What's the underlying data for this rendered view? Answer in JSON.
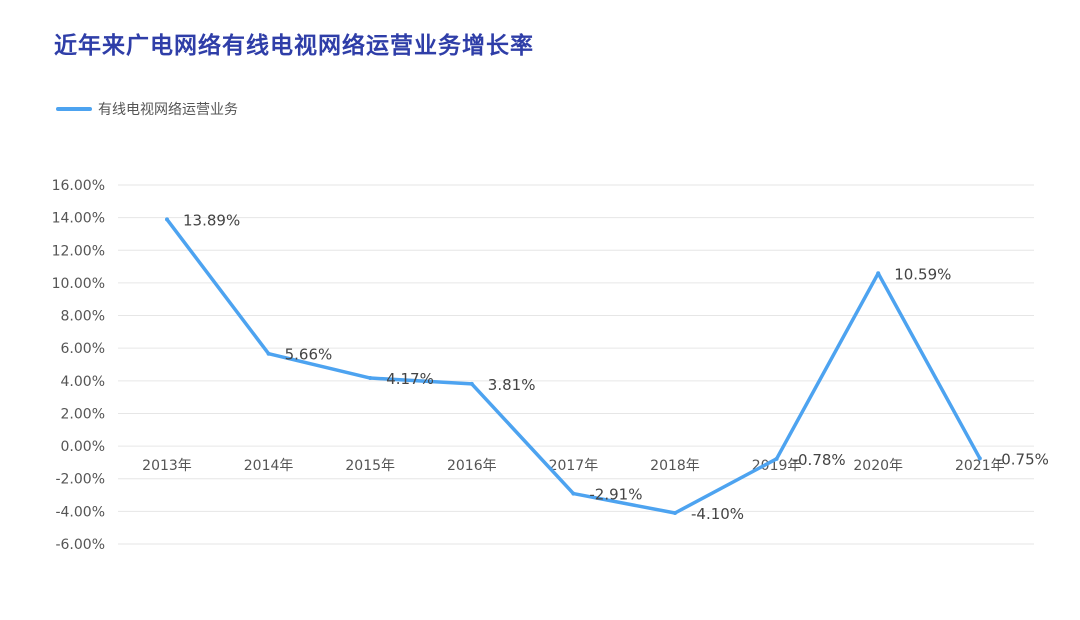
{
  "chart_data": {
    "type": "line",
    "title": "近年来广电网络有线电视网络运营业务增长率",
    "categories": [
      "2013年",
      "2014年",
      "2015年",
      "2016年",
      "2017年",
      "2018年",
      "2019年",
      "2020年",
      "2021年"
    ],
    "series": [
      {
        "name": "有线电视网络运营业务",
        "values": [
          13.89,
          5.66,
          4.17,
          3.81,
          -2.91,
          -4.1,
          -0.78,
          10.59,
          -0.75
        ],
        "labels": [
          "13.89%",
          "5.66%",
          "4.17%",
          "3.81%",
          "-2.91%",
          "-4.10%",
          "-0.78%",
          "10.59%",
          "-0.75%"
        ],
        "color": "#4da3f0"
      }
    ],
    "yticks": [
      "16.00%",
      "14.00%",
      "12.00%",
      "10.00%",
      "8.00%",
      "6.00%",
      "4.00%",
      "2.00%",
      "0.00%",
      "-2.00%",
      "-4.00%",
      "-6.00%"
    ],
    "ylim": [
      -6,
      16
    ],
    "grid": true,
    "legend_position": "top-left",
    "title_color": "#2f3ea8",
    "grid_color": "#e6e6e6"
  }
}
